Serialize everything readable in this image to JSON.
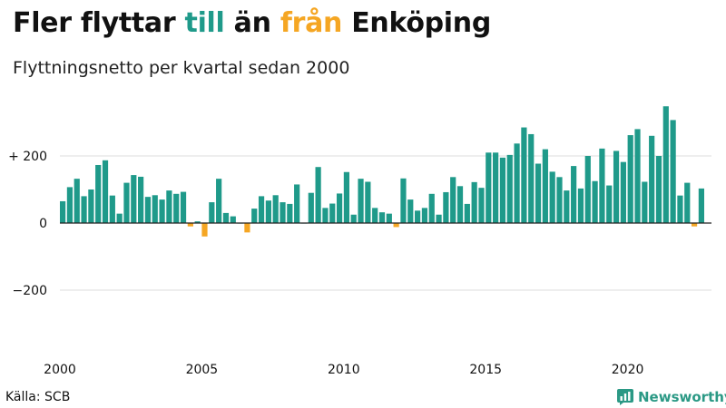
{
  "title": {
    "part1": "Fler flyttar ",
    "till": "till",
    "part2": " än ",
    "fran": "från",
    "part3": " Enköping"
  },
  "subtitle": "Flyttningsnetto per kvartal sedan 2000",
  "source": "Källa: SCB",
  "brand": "Newsworthy",
  "colors": {
    "positive": "#1f9a8a",
    "negative": "#f5a623",
    "grid": "#dddddd",
    "brand": "#2b9985"
  },
  "chart_data": {
    "type": "bar",
    "title": "Fler flyttar till än från Enköping",
    "subtitle": "Flyttningsnetto per kvartal sedan 2000",
    "x_start": "2000 Q1",
    "x_tick_labels": [
      "2000",
      "2005",
      "2010",
      "2015",
      "2020"
    ],
    "y_tick_labels": [
      "+ 200",
      "0",
      "−200"
    ],
    "y_ticks": [
      200,
      0,
      -200
    ],
    "ylim": [
      -300,
      370
    ],
    "grid": true,
    "values": [
      65,
      107,
      132,
      80,
      100,
      173,
      187,
      82,
      28,
      120,
      143,
      138,
      78,
      83,
      70,
      97,
      87,
      93,
      -10,
      5,
      -40,
      62,
      132,
      30,
      20,
      0,
      -28,
      43,
      80,
      67,
      83,
      62,
      57,
      115,
      0,
      90,
      167,
      45,
      58,
      88,
      152,
      25,
      132,
      123,
      45,
      32,
      28,
      -12,
      133,
      70,
      37,
      45,
      87,
      25,
      92,
      137,
      110,
      57,
      122,
      105,
      210,
      210,
      195,
      203,
      237,
      285,
      265,
      177,
      220,
      153,
      137,
      97,
      170,
      103,
      200,
      125,
      222,
      112,
      215,
      182,
      262,
      280,
      123,
      260,
      200,
      348,
      307,
      82,
      120,
      -10,
      103
    ]
  }
}
